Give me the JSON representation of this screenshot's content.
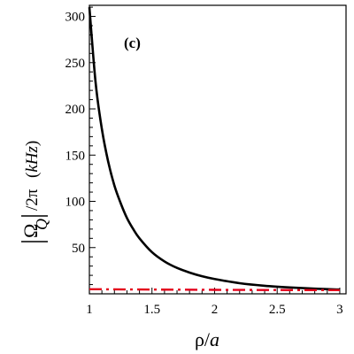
{
  "chart_data": {
    "type": "line",
    "panel_label": "(c)",
    "xlabel": {
      "rho": "ρ",
      "slash": "/",
      "a": "a"
    },
    "ylabel": {
      "omega": "Ω",
      "sub": "Q",
      "rest": "/2π",
      "unit_open": "(",
      "unit": "kHz",
      "unit_close": ")"
    },
    "xlim": [
      1,
      3.05
    ],
    "ylim": [
      0,
      312
    ],
    "x_ticks": [
      1,
      1.5,
      2,
      2.5,
      3
    ],
    "x_tick_labels": [
      "1",
      "1.5",
      "2",
      "2.5",
      "3"
    ],
    "y_ticks": [
      50,
      100,
      150,
      200,
      250,
      300
    ],
    "y_tick_labels": [
      "50",
      "100",
      "150",
      "200",
      "250",
      "300"
    ],
    "grid": false,
    "series": [
      {
        "color": "#000000",
        "style": "solid",
        "x": [
          1.0,
          1.05,
          1.1,
          1.15,
          1.2,
          1.25,
          1.3,
          1.35,
          1.4,
          1.5,
          1.6,
          1.7,
          1.8,
          1.9,
          2.0,
          2.2,
          2.4,
          2.6,
          2.8,
          3.0
        ],
        "y": [
          310,
          228,
          178,
          143,
          117,
          98,
          82,
          70,
          60,
          45,
          35,
          28,
          23,
          19,
          16,
          11.5,
          8.7,
          6.9,
          5.6,
          4.6
        ]
      },
      {
        "color": "#e3001b",
        "style": "dashdot",
        "x": [
          1.0,
          1.5,
          2.0,
          2.5,
          3.0
        ],
        "y": [
          5.0,
          4.6,
          4.3,
          4.1,
          4.0
        ]
      }
    ]
  }
}
